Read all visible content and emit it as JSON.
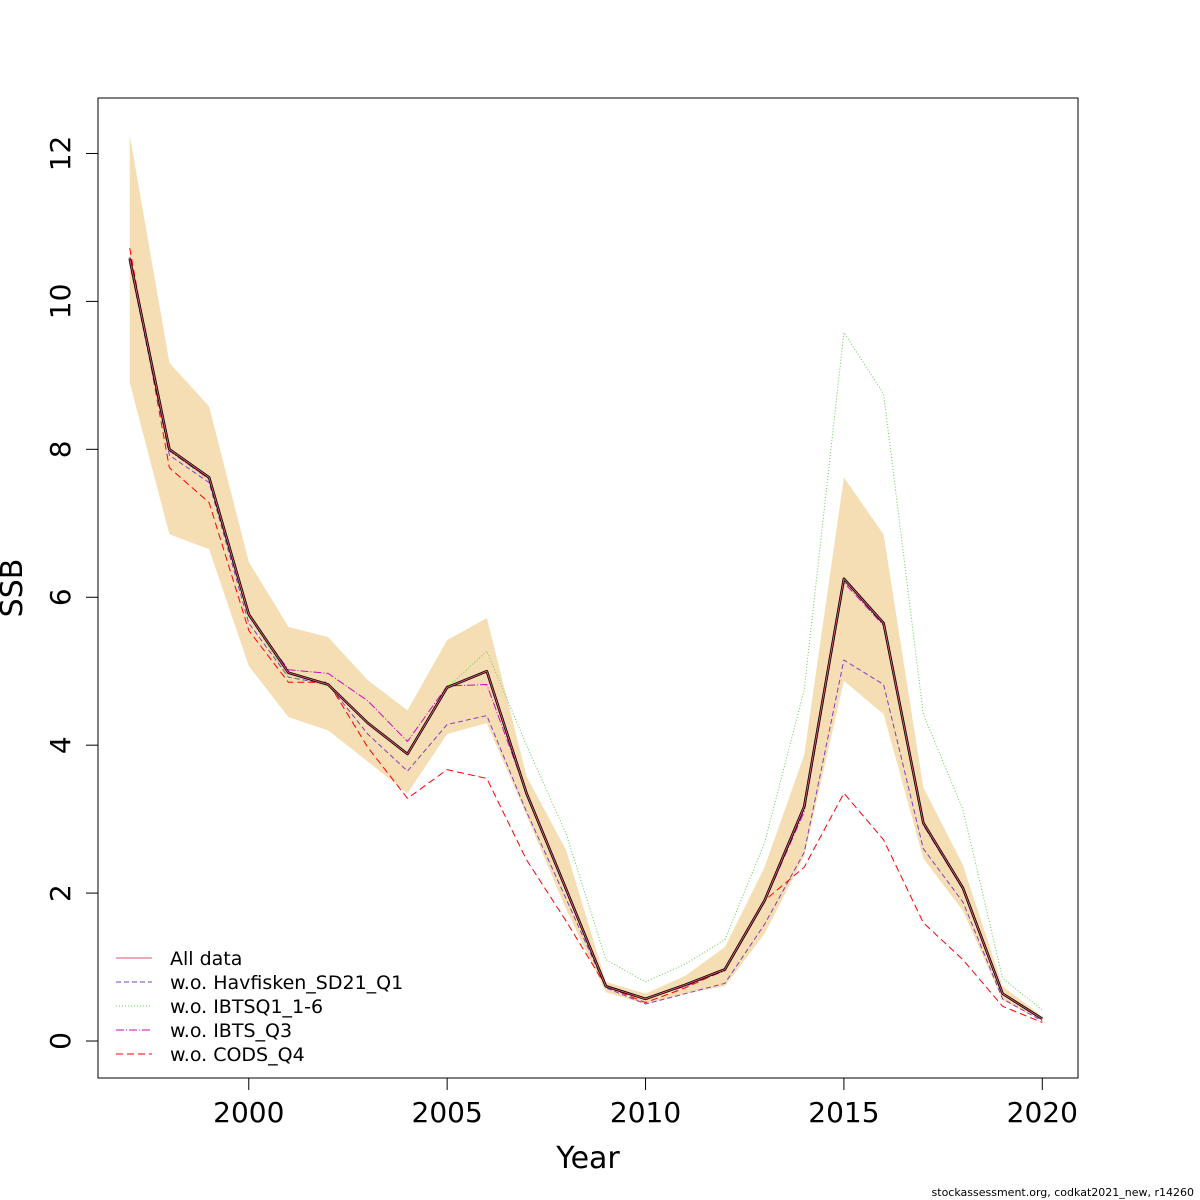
{
  "chart_data": {
    "type": "line",
    "xlabel": "Year",
    "ylabel": "SSB",
    "xlim": [
      1996.2,
      2020.9
    ],
    "ylim": [
      -0.5,
      12.75
    ],
    "xticks": [
      2000,
      2005,
      2010,
      2015,
      2020
    ],
    "yticks": [
      0,
      2,
      4,
      6,
      8,
      10,
      12
    ],
    "grid": false,
    "legend_position": "bottom-left",
    "x": [
      1997,
      1998,
      1999,
      2000,
      2001,
      2002,
      2003,
      2004,
      2005,
      2006,
      2007,
      2008,
      2009,
      2010,
      2011,
      2012,
      2013,
      2014,
      2015,
      2016,
      2017,
      2018,
      2019,
      2020
    ],
    "confidence_band": {
      "color": "#F5DEB3",
      "lower": [
        8.9,
        6.85,
        6.65,
        5.07,
        4.38,
        4.2,
        3.78,
        3.35,
        4.15,
        4.3,
        3.05,
        1.78,
        0.66,
        0.5,
        0.64,
        0.74,
        1.45,
        2.5,
        4.87,
        4.42,
        2.47,
        1.76,
        0.55,
        0.27
      ],
      "upper": [
        12.25,
        9.17,
        8.58,
        6.48,
        5.6,
        5.46,
        4.88,
        4.47,
        5.42,
        5.72,
        3.58,
        2.58,
        0.8,
        0.64,
        0.88,
        1.27,
        2.35,
        3.87,
        7.62,
        6.85,
        3.43,
        2.38,
        0.74,
        0.33
      ]
    },
    "series": [
      {
        "name": "All data",
        "color": "#000000",
        "dash": "solid",
        "width": 2.6,
        "values": [
          10.58,
          8.0,
          7.62,
          5.77,
          4.98,
          4.82,
          4.3,
          3.88,
          4.78,
          5.0,
          3.35,
          2.05,
          0.74,
          0.57,
          0.76,
          0.97,
          1.9,
          3.17,
          6.25,
          5.65,
          2.95,
          2.07,
          0.64,
          0.3
        ]
      },
      {
        "name": "All data",
        "color": "#DF536B",
        "dash": "solid",
        "width": 1,
        "values": [
          10.58,
          8.0,
          7.62,
          5.77,
          4.98,
          4.82,
          4.3,
          3.88,
          4.78,
          5.0,
          3.35,
          2.05,
          0.74,
          0.57,
          0.76,
          0.97,
          1.9,
          3.17,
          6.25,
          5.65,
          2.95,
          2.07,
          0.64,
          0.3
        ]
      },
      {
        "name": "w.o. Havfisken_SD21_Q1",
        "color": "#7F3FBF",
        "dash": "5,3",
        "width": 1,
        "values": [
          10.52,
          7.92,
          7.55,
          5.65,
          4.92,
          4.82,
          4.15,
          3.65,
          4.28,
          4.4,
          3.1,
          1.92,
          0.72,
          0.5,
          0.64,
          0.78,
          1.58,
          2.55,
          5.15,
          4.82,
          2.6,
          1.88,
          0.57,
          0.27
        ]
      },
      {
        "name": "w.o. IBTSQ1_1-6",
        "color": "#61D04F",
        "dash": "1,2",
        "width": 1,
        "values": [
          10.58,
          7.98,
          7.58,
          5.74,
          4.92,
          4.8,
          4.3,
          3.88,
          4.78,
          5.27,
          4.0,
          2.8,
          1.1,
          0.8,
          1.04,
          1.37,
          2.68,
          4.75,
          9.58,
          8.75,
          4.42,
          3.13,
          0.85,
          0.42
        ]
      },
      {
        "name": "w.o. IBTS_Q3",
        "color": "#CD0BBC",
        "dash": "8,2,1,2",
        "width": 1,
        "values": [
          10.6,
          7.98,
          7.6,
          5.75,
          5.02,
          4.97,
          4.6,
          4.05,
          4.8,
          4.82,
          3.35,
          2.02,
          0.75,
          0.58,
          0.74,
          0.95,
          1.88,
          3.1,
          6.2,
          5.62,
          2.92,
          2.05,
          0.64,
          0.3
        ]
      },
      {
        "name": "w.o. CODS_Q4",
        "color": "#FF0000",
        "dash": "7,4",
        "width": 1,
        "values": [
          10.72,
          7.75,
          7.28,
          5.55,
          4.85,
          4.85,
          3.97,
          3.28,
          3.67,
          3.55,
          2.45,
          1.62,
          0.74,
          0.52,
          0.72,
          0.96,
          1.9,
          2.35,
          3.35,
          2.72,
          1.6,
          1.1,
          0.47,
          0.25
        ]
      }
    ],
    "legend": [
      {
        "label": "All data",
        "color": "#DF536B",
        "dash": "solid"
      },
      {
        "label": "w.o. Havfisken_SD21_Q1",
        "color": "#7F3FBF",
        "dash": "5,3"
      },
      {
        "label": "w.o. IBTSQ1_1-6",
        "color": "#61D04F",
        "dash": "1,2"
      },
      {
        "label": "w.o. IBTS_Q3",
        "color": "#CD0BBC",
        "dash": "8,2,1,2"
      },
      {
        "label": "w.o. CODS_Q4",
        "color": "#FF0000",
        "dash": "7,4"
      }
    ]
  },
  "footer": "stockassessment.org, codkat2021_new, r14260"
}
